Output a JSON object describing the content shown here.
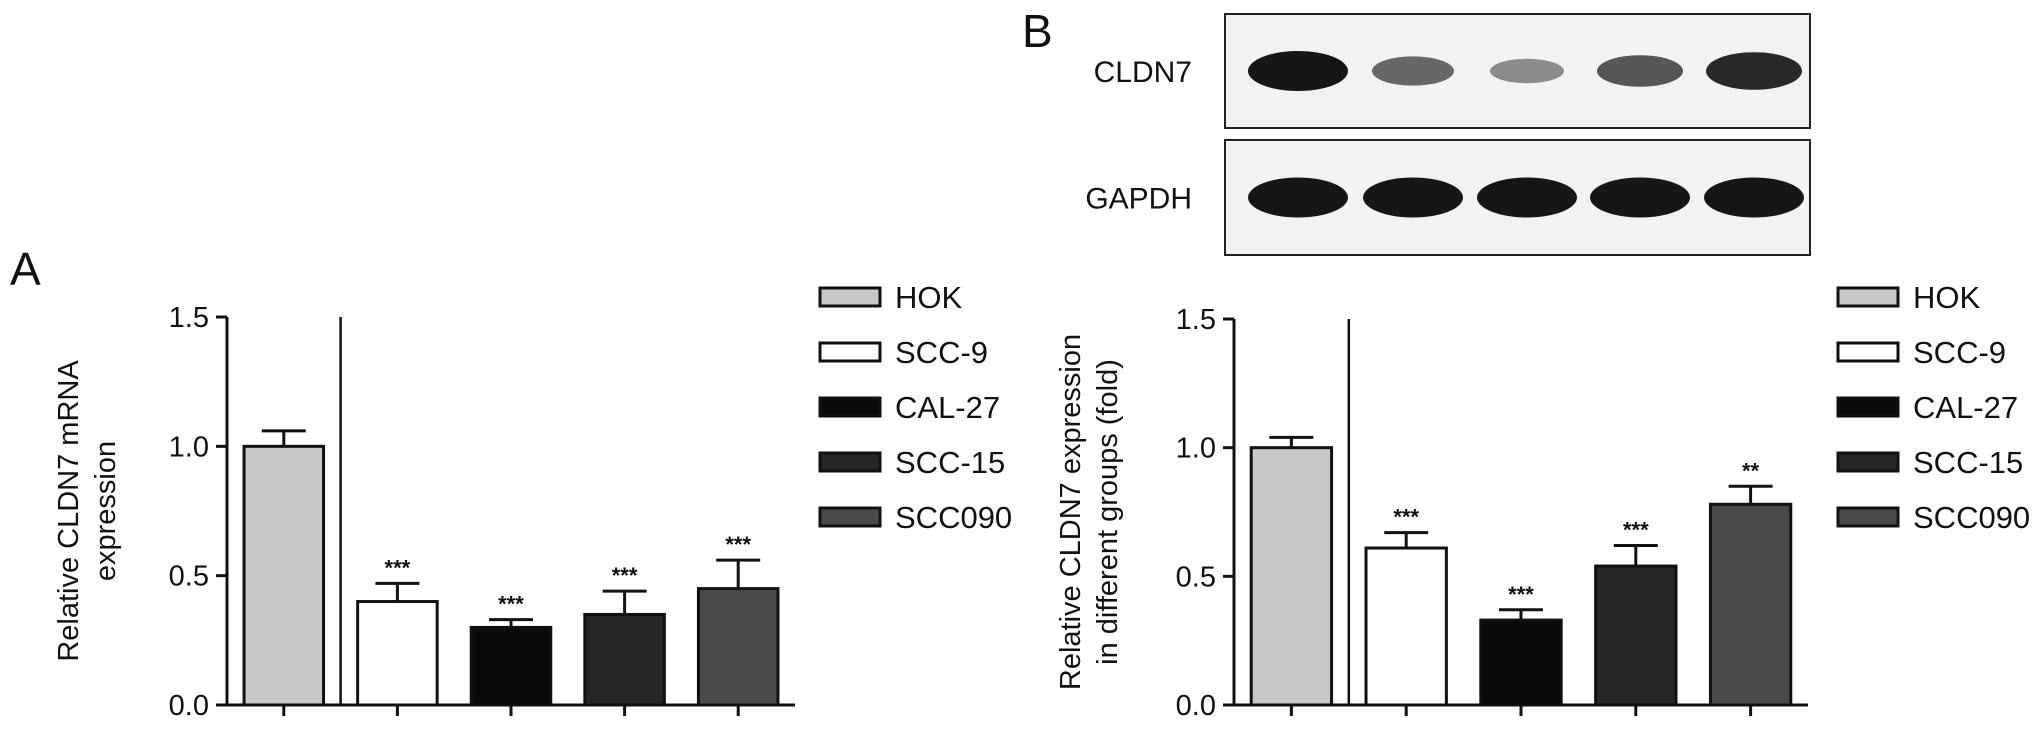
{
  "panels": {
    "a": {
      "letter": "A"
    },
    "b": {
      "letter": "B"
    }
  },
  "legend": {
    "entries": [
      {
        "label": "HOK",
        "color": "#c8c8c8"
      },
      {
        "label": "SCC-9",
        "color": "#ffffff"
      },
      {
        "label": "CAL-27",
        "color": "#0a0a0a"
      },
      {
        "label": "SCC-15",
        "color": "#262626"
      },
      {
        "label": "SCC090",
        "color": "#4a4a4a"
      }
    ]
  },
  "blot": {
    "rows": [
      {
        "label": "CLDN7",
        "band_intensity": [
          1.0,
          0.55,
          0.35,
          0.65,
          0.9
        ]
      },
      {
        "label": "GAPDH",
        "band_intensity": [
          1.0,
          1.0,
          1.0,
          1.0,
          1.0
        ]
      }
    ]
  },
  "chart_data": [
    {
      "type": "bar",
      "panel": "A",
      "categories": [
        "HOK",
        "SCC-9",
        "CAL-27",
        "SCC-15",
        "SCC090"
      ],
      "values": [
        1.0,
        0.4,
        0.3,
        0.35,
        0.45
      ],
      "errors": [
        0.06,
        0.07,
        0.03,
        0.09,
        0.11
      ],
      "significance": [
        "",
        "***",
        "***",
        "***",
        "***"
      ],
      "ylabel": [
        "Relative CLDN7 mRNA",
        "expression"
      ],
      "ylim": [
        0,
        1.5
      ],
      "yticks": [
        "0.0",
        "0.5",
        "1.0",
        "1.5"
      ],
      "colors": [
        "#c8c8c8",
        "#ffffff",
        "#0a0a0a",
        "#262626",
        "#4a4a4a"
      ]
    },
    {
      "type": "bar",
      "panel": "B",
      "categories": [
        "HOK",
        "SCC-9",
        "CAL-27",
        "SCC-15",
        "SCC090"
      ],
      "values": [
        1.0,
        0.61,
        0.33,
        0.54,
        0.78
      ],
      "errors": [
        0.04,
        0.06,
        0.04,
        0.08,
        0.07
      ],
      "significance": [
        "",
        "***",
        "***",
        "***",
        "**"
      ],
      "ylabel": [
        "Relative CLDN7 expression",
        "in different groups (fold)"
      ],
      "ylim": [
        0,
        1.5
      ],
      "yticks": [
        "0.0",
        "0.5",
        "1.0",
        "1.5"
      ],
      "colors": [
        "#c8c8c8",
        "#ffffff",
        "#0a0a0a",
        "#262626",
        "#4a4a4a"
      ]
    }
  ]
}
